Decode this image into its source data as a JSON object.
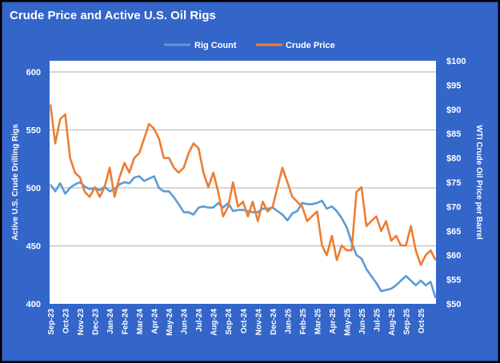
{
  "chart_data": {
    "type": "line",
    "title": "Crude Price and Active U.S. Oil Rigs",
    "legend": {
      "placement": "top-center"
    },
    "grid": true,
    "y_left": {
      "label": "Active U.S. Crude Drilling Rigs",
      "range": [
        400,
        610
      ],
      "ticks": [
        "400",
        "450",
        "500",
        "550",
        "600"
      ]
    },
    "y_right": {
      "label": "WTI Crude Oil Price per Barrel",
      "range": [
        50,
        100
      ],
      "ticks": [
        "$50",
        "$55",
        "$60",
        "$65",
        "$70",
        "$75",
        "$80",
        "$85",
        "$90",
        "$95",
        "$100"
      ]
    },
    "x_ticks": [
      "Sep-23",
      "Oct-23",
      "Nov-23",
      "Dec-23",
      "Jan-24",
      "Feb-24",
      "Mar-24",
      "Apr-24",
      "May-24",
      "Jun-24",
      "Jul-24",
      "Aug-24",
      "Sep-24",
      "Oct-24",
      "Nov-24",
      "Dec-24",
      "Jan-25",
      "Feb-25",
      "Mar-25",
      "Apr-25",
      "May-25",
      "Jun-25",
      "Jul-25",
      "Aug-25",
      "Sep-25",
      "Oct-25"
    ],
    "x": [
      "2023-09-01",
      "2023-09-11",
      "2023-09-21",
      "2023-10-01",
      "2023-10-11",
      "2023-10-21",
      "2023-11-01",
      "2023-11-11",
      "2023-11-21",
      "2023-12-01",
      "2023-12-11",
      "2023-12-21",
      "2024-01-01",
      "2024-01-11",
      "2024-01-21",
      "2024-02-01",
      "2024-02-11",
      "2024-02-21",
      "2024-03-01",
      "2024-03-11",
      "2024-03-21",
      "2024-04-01",
      "2024-04-11",
      "2024-04-21",
      "2024-05-01",
      "2024-05-11",
      "2024-05-21",
      "2024-06-01",
      "2024-06-11",
      "2024-06-21",
      "2024-07-01",
      "2024-07-11",
      "2024-07-21",
      "2024-08-01",
      "2024-08-11",
      "2024-08-21",
      "2024-09-01",
      "2024-09-11",
      "2024-09-21",
      "2024-10-01",
      "2024-10-11",
      "2024-10-21",
      "2024-11-01",
      "2024-11-11",
      "2024-11-21",
      "2024-12-01",
      "2024-12-11",
      "2024-12-21",
      "2025-01-01",
      "2025-01-11",
      "2025-01-21",
      "2025-02-01",
      "2025-02-11",
      "2025-02-21",
      "2025-03-01",
      "2025-03-11",
      "2025-03-21",
      "2025-04-01",
      "2025-04-11",
      "2025-04-21",
      "2025-05-01",
      "2025-05-11",
      "2025-05-21",
      "2025-06-01",
      "2025-06-11",
      "2025-06-21",
      "2025-07-01",
      "2025-07-11",
      "2025-07-21",
      "2025-08-01",
      "2025-08-11",
      "2025-08-21",
      "2025-09-01",
      "2025-09-11",
      "2025-09-21",
      "2025-10-01",
      "2025-10-11",
      "2025-10-21",
      "2025-11-01"
    ],
    "series": [
      {
        "name": "Rig Count",
        "axis": "left",
        "color": "#5b9bd5",
        "values": [
          503,
          497,
          504,
          495,
          500,
          503,
          505,
          501,
          499,
          500,
          498,
          501,
          497,
          499,
          503,
          505,
          504,
          509,
          510,
          506,
          508,
          510,
          500,
          497,
          497,
          492,
          486,
          479,
          479,
          477,
          483,
          484,
          483,
          483,
          487,
          483,
          487,
          480,
          481,
          481,
          480,
          479,
          479,
          482,
          482,
          483,
          480,
          477,
          472,
          478,
          480,
          487,
          486,
          486,
          487,
          489,
          482,
          484,
          480,
          474,
          466,
          453,
          442,
          439,
          430,
          424,
          418,
          411,
          412,
          413,
          416,
          420,
          424,
          420,
          416,
          420,
          416,
          419,
          405
        ]
      },
      {
        "name": "Crude Price",
        "axis": "right",
        "color": "#ed7d31",
        "values": [
          91,
          83,
          88,
          89,
          80,
          77,
          76,
          73,
          72,
          74,
          72,
          74,
          78,
          72,
          76,
          79,
          77,
          80,
          81,
          84,
          87,
          86,
          84,
          80,
          80,
          78,
          77,
          78,
          81,
          83,
          82,
          77,
          74,
          77,
          73,
          68,
          70,
          75,
          70,
          71,
          68,
          71,
          67,
          71,
          69,
          70,
          74,
          78,
          75,
          72,
          71,
          70,
          67,
          68,
          69,
          62,
          60,
          64,
          59,
          62,
          61,
          61,
          73,
          74,
          66,
          67,
          68,
          65,
          67,
          63,
          64,
          62,
          62,
          66,
          61,
          58,
          60,
          61,
          59
        ]
      }
    ]
  }
}
